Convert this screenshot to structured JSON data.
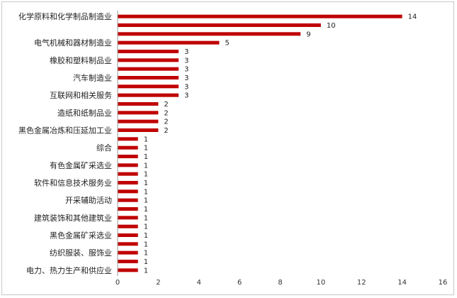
{
  "chart_data": {
    "type": "bar",
    "orientation": "horizontal",
    "categories": [
      "化学原料和化学制品制造业",
      "",
      "",
      "电气机械和器材制造业",
      "",
      "橡胶和塑料制品业",
      "",
      "汽车制造业",
      "",
      "互联网和相关服务",
      "",
      "造纸和纸制品业",
      "",
      "黑色金属冶炼和压延加工业",
      "",
      "综合",
      "",
      "有色金属矿采选业",
      "",
      "软件和信息技术服务业",
      "",
      "开采辅助活动",
      "",
      "建筑装饰和其他建筑业",
      "",
      "黑色金属矿采选业",
      "",
      "纺织服装、服饰业",
      "",
      "电力、热力生产和供应业"
    ],
    "values": [
      14,
      10,
      9,
      5,
      3,
      3,
      3,
      3,
      3,
      3,
      2,
      2,
      2,
      2,
      1,
      1,
      1,
      1,
      1,
      1,
      1,
      1,
      1,
      1,
      1,
      1,
      1,
      1,
      1,
      1
    ],
    "xlim": [
      0,
      16
    ],
    "xticks": [
      0,
      2,
      4,
      6,
      8,
      10,
      12,
      14,
      16
    ],
    "bar_color": "#c00000",
    "title": "",
    "xlabel": "",
    "ylabel": "",
    "grid": false,
    "legend": "none"
  }
}
